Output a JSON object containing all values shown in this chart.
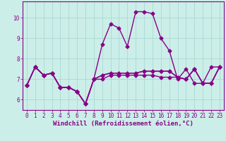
{
  "xlabel": "Windchill (Refroidissement éolien,°C)",
  "ylabel": "",
  "background_color": "#cceee8",
  "line_color": "#880088",
  "marker": "D",
  "markersize": 2.5,
  "linewidth": 1.0,
  "x": [
    0,
    1,
    2,
    3,
    4,
    5,
    6,
    7,
    8,
    9,
    10,
    11,
    12,
    13,
    14,
    15,
    16,
    17,
    18,
    19,
    20,
    21,
    22,
    23
  ],
  "series": [
    [
      6.7,
      7.6,
      7.2,
      7.3,
      6.6,
      6.6,
      6.4,
      5.8,
      7.0,
      7.0,
      7.2,
      7.2,
      7.2,
      7.2,
      7.2,
      7.2,
      7.1,
      7.1,
      7.1,
      7.0,
      7.5,
      6.8,
      6.8,
      7.6
    ],
    [
      6.7,
      7.6,
      7.2,
      7.3,
      6.6,
      6.6,
      6.4,
      5.8,
      7.0,
      8.7,
      9.7,
      9.5,
      8.6,
      10.3,
      10.3,
      10.2,
      9.0,
      8.4,
      7.0,
      7.5,
      6.8,
      6.8,
      7.6,
      7.6
    ],
    [
      6.7,
      7.6,
      7.2,
      7.3,
      6.6,
      6.6,
      6.4,
      5.8,
      7.0,
      7.2,
      7.3,
      7.3,
      7.3,
      7.3,
      7.4,
      7.4,
      7.4,
      7.4,
      7.1,
      7.0,
      7.5,
      6.8,
      6.8,
      7.6
    ],
    [
      6.7,
      7.6,
      7.2,
      7.3,
      6.6,
      6.6,
      6.4,
      5.8,
      7.0,
      7.2,
      7.3,
      7.3,
      7.3,
      7.3,
      7.4,
      7.4,
      7.4,
      7.4,
      7.1,
      7.0,
      7.5,
      6.8,
      6.8,
      7.6
    ]
  ],
  "ylim": [
    5.5,
    10.8
  ],
  "yticks": [
    6,
    7,
    8,
    9,
    10
  ],
  "grid_color": "#aad8d4",
  "tick_color": "#880088",
  "tick_fontsize": 5.5,
  "xlabel_fontsize": 6.5,
  "spine_color": "#880088"
}
